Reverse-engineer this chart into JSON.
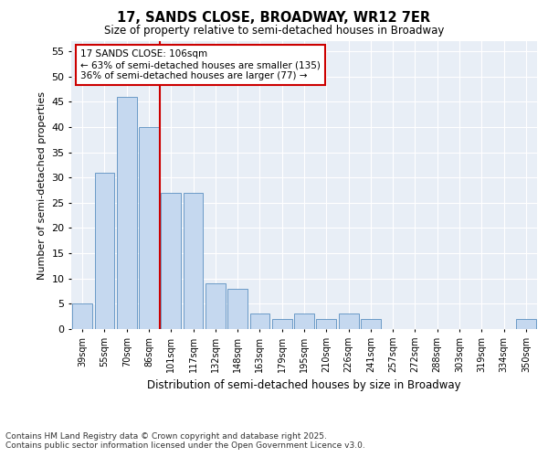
{
  "title1": "17, SANDS CLOSE, BROADWAY, WR12 7ER",
  "title2": "Size of property relative to semi-detached houses in Broadway",
  "xlabel": "Distribution of semi-detached houses by size in Broadway",
  "ylabel": "Number of semi-detached properties",
  "categories": [
    "39sqm",
    "55sqm",
    "70sqm",
    "86sqm",
    "101sqm",
    "117sqm",
    "132sqm",
    "148sqm",
    "163sqm",
    "179sqm",
    "195sqm",
    "210sqm",
    "226sqm",
    "241sqm",
    "257sqm",
    "272sqm",
    "288sqm",
    "303sqm",
    "319sqm",
    "334sqm",
    "350sqm"
  ],
  "values": [
    5,
    31,
    46,
    40,
    27,
    27,
    9,
    8,
    3,
    2,
    3,
    2,
    3,
    2,
    0,
    0,
    0,
    0,
    0,
    0,
    2
  ],
  "bar_color": "#c5d8ef",
  "bar_edge_color": "#5a8fc0",
  "vline_x": 3.5,
  "vline_color": "#cc0000",
  "annotation_title": "17 SANDS CLOSE: 106sqm",
  "annotation_line1": "← 63% of semi-detached houses are smaller (135)",
  "annotation_line2": "36% of semi-detached houses are larger (77) →",
  "annotation_box_color": "#cc0000",
  "ylim": [
    0,
    57
  ],
  "yticks": [
    0,
    5,
    10,
    15,
    20,
    25,
    30,
    35,
    40,
    45,
    50,
    55
  ],
  "bg_color": "#e8eef6",
  "grid_color": "#ffffff",
  "footer1": "Contains HM Land Registry data © Crown copyright and database right 2025.",
  "footer2": "Contains public sector information licensed under the Open Government Licence v3.0."
}
